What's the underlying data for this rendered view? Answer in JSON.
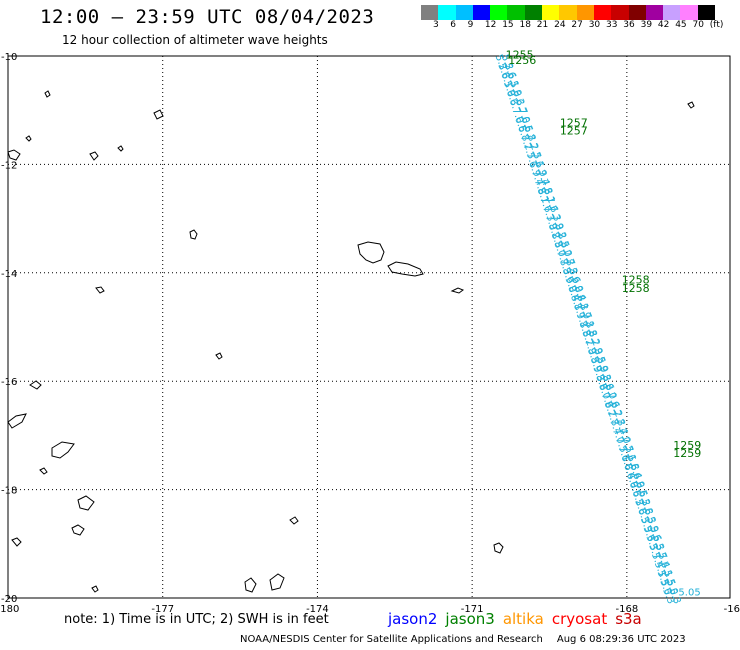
{
  "header": {
    "title": "12:00 – 23:59 UTC 08/04/2023",
    "subtitle": "12 hour collection of altimeter wave heights"
  },
  "legend": {
    "labels": [
      "3",
      "6",
      "9",
      "12",
      "15",
      "18",
      "21",
      "24",
      "27",
      "30",
      "33",
      "36",
      "39",
      "42",
      "45",
      "70",
      "(ft)"
    ],
    "colors": [
      "#808080",
      "#00ffff",
      "#00bfff",
      "#0000ff",
      "#00ff00",
      "#00c000",
      "#008000",
      "#ffff00",
      "#ffc800",
      "#ff9600",
      "#ff0000",
      "#c80000",
      "#800000",
      "#a000a0",
      "#c8a0ff",
      "#ff80ff",
      "#000000"
    ]
  },
  "map": {
    "lon_ticks": [
      "-180",
      "-177",
      "-174",
      "-171",
      "-168",
      "-16"
    ],
    "lat_ticks": [
      "-10",
      "-12",
      "-14",
      "-16",
      "-18",
      "-20"
    ],
    "track_color": "#22b0d8",
    "time_label_color": "#007000",
    "time_labels": [
      {
        "text": "1255",
        "lon": -170.35,
        "lat": -10.05
      },
      {
        "text": "1256",
        "lon": -170.3,
        "lat": -10.15
      },
      {
        "text": "1257",
        "lon": -169.3,
        "lat": -11.3
      },
      {
        "text": "1257",
        "lon": -169.3,
        "lat": -11.45
      },
      {
        "text": "1258",
        "lon": -168.1,
        "lat": -14.2
      },
      {
        "text": "1258",
        "lon": -168.1,
        "lat": -14.35
      },
      {
        "text": "1259",
        "lon": -167.1,
        "lat": -17.25
      },
      {
        "text": "1259",
        "lon": -167.1,
        "lat": -17.4
      }
    ],
    "track_values": [
      "5.2",
      "5.6",
      "6.1",
      "5.9",
      "6.3",
      "6.7",
      "7.0",
      "6.5",
      "6.8",
      "7.2",
      "7.5",
      "7.1",
      "6.9",
      "7.4",
      "7.8",
      "8.1",
      "7.6",
      "7.3",
      "7.9",
      "8.2",
      "8.5",
      "8.0",
      "7.7",
      "8.3",
      "8.6",
      "9.0",
      "8.4",
      "8.1",
      "8.7",
      "9.1",
      "8.8",
      "8.2",
      "7.9",
      "8.5",
      "8.9",
      "9.3",
      "8.6",
      "8.0",
      "7.6",
      "8.2",
      "7.8",
      "7.4",
      "7.0",
      "7.5",
      "7.1",
      "6.8",
      "6.4",
      "6.9",
      "6.5",
      "6.2",
      "5.8",
      "6.3",
      "5.9",
      "5.6",
      "5.3",
      "5.7",
      "5.4",
      "5.1",
      "5.5",
      "5.0",
      "5.3"
    ],
    "end_label": "5.05"
  },
  "footer": {
    "note": "note: 1) Time is in UTC; 2) SWH is in feet",
    "satellites": [
      {
        "name": "jason2",
        "color": "#0000ff"
      },
      {
        "name": "jason3",
        "color": "#008000"
      },
      {
        "name": "altika",
        "color": "#ff9600"
      },
      {
        "name": "cryosat",
        "color": "#ff0000"
      },
      {
        "name": "s3a",
        "color": "#c80000"
      }
    ],
    "credit": "NOAA/NESDIS Center for Satellite Applications and Research",
    "stamp": "Aug  6 08:29:36 UTC 2023"
  }
}
